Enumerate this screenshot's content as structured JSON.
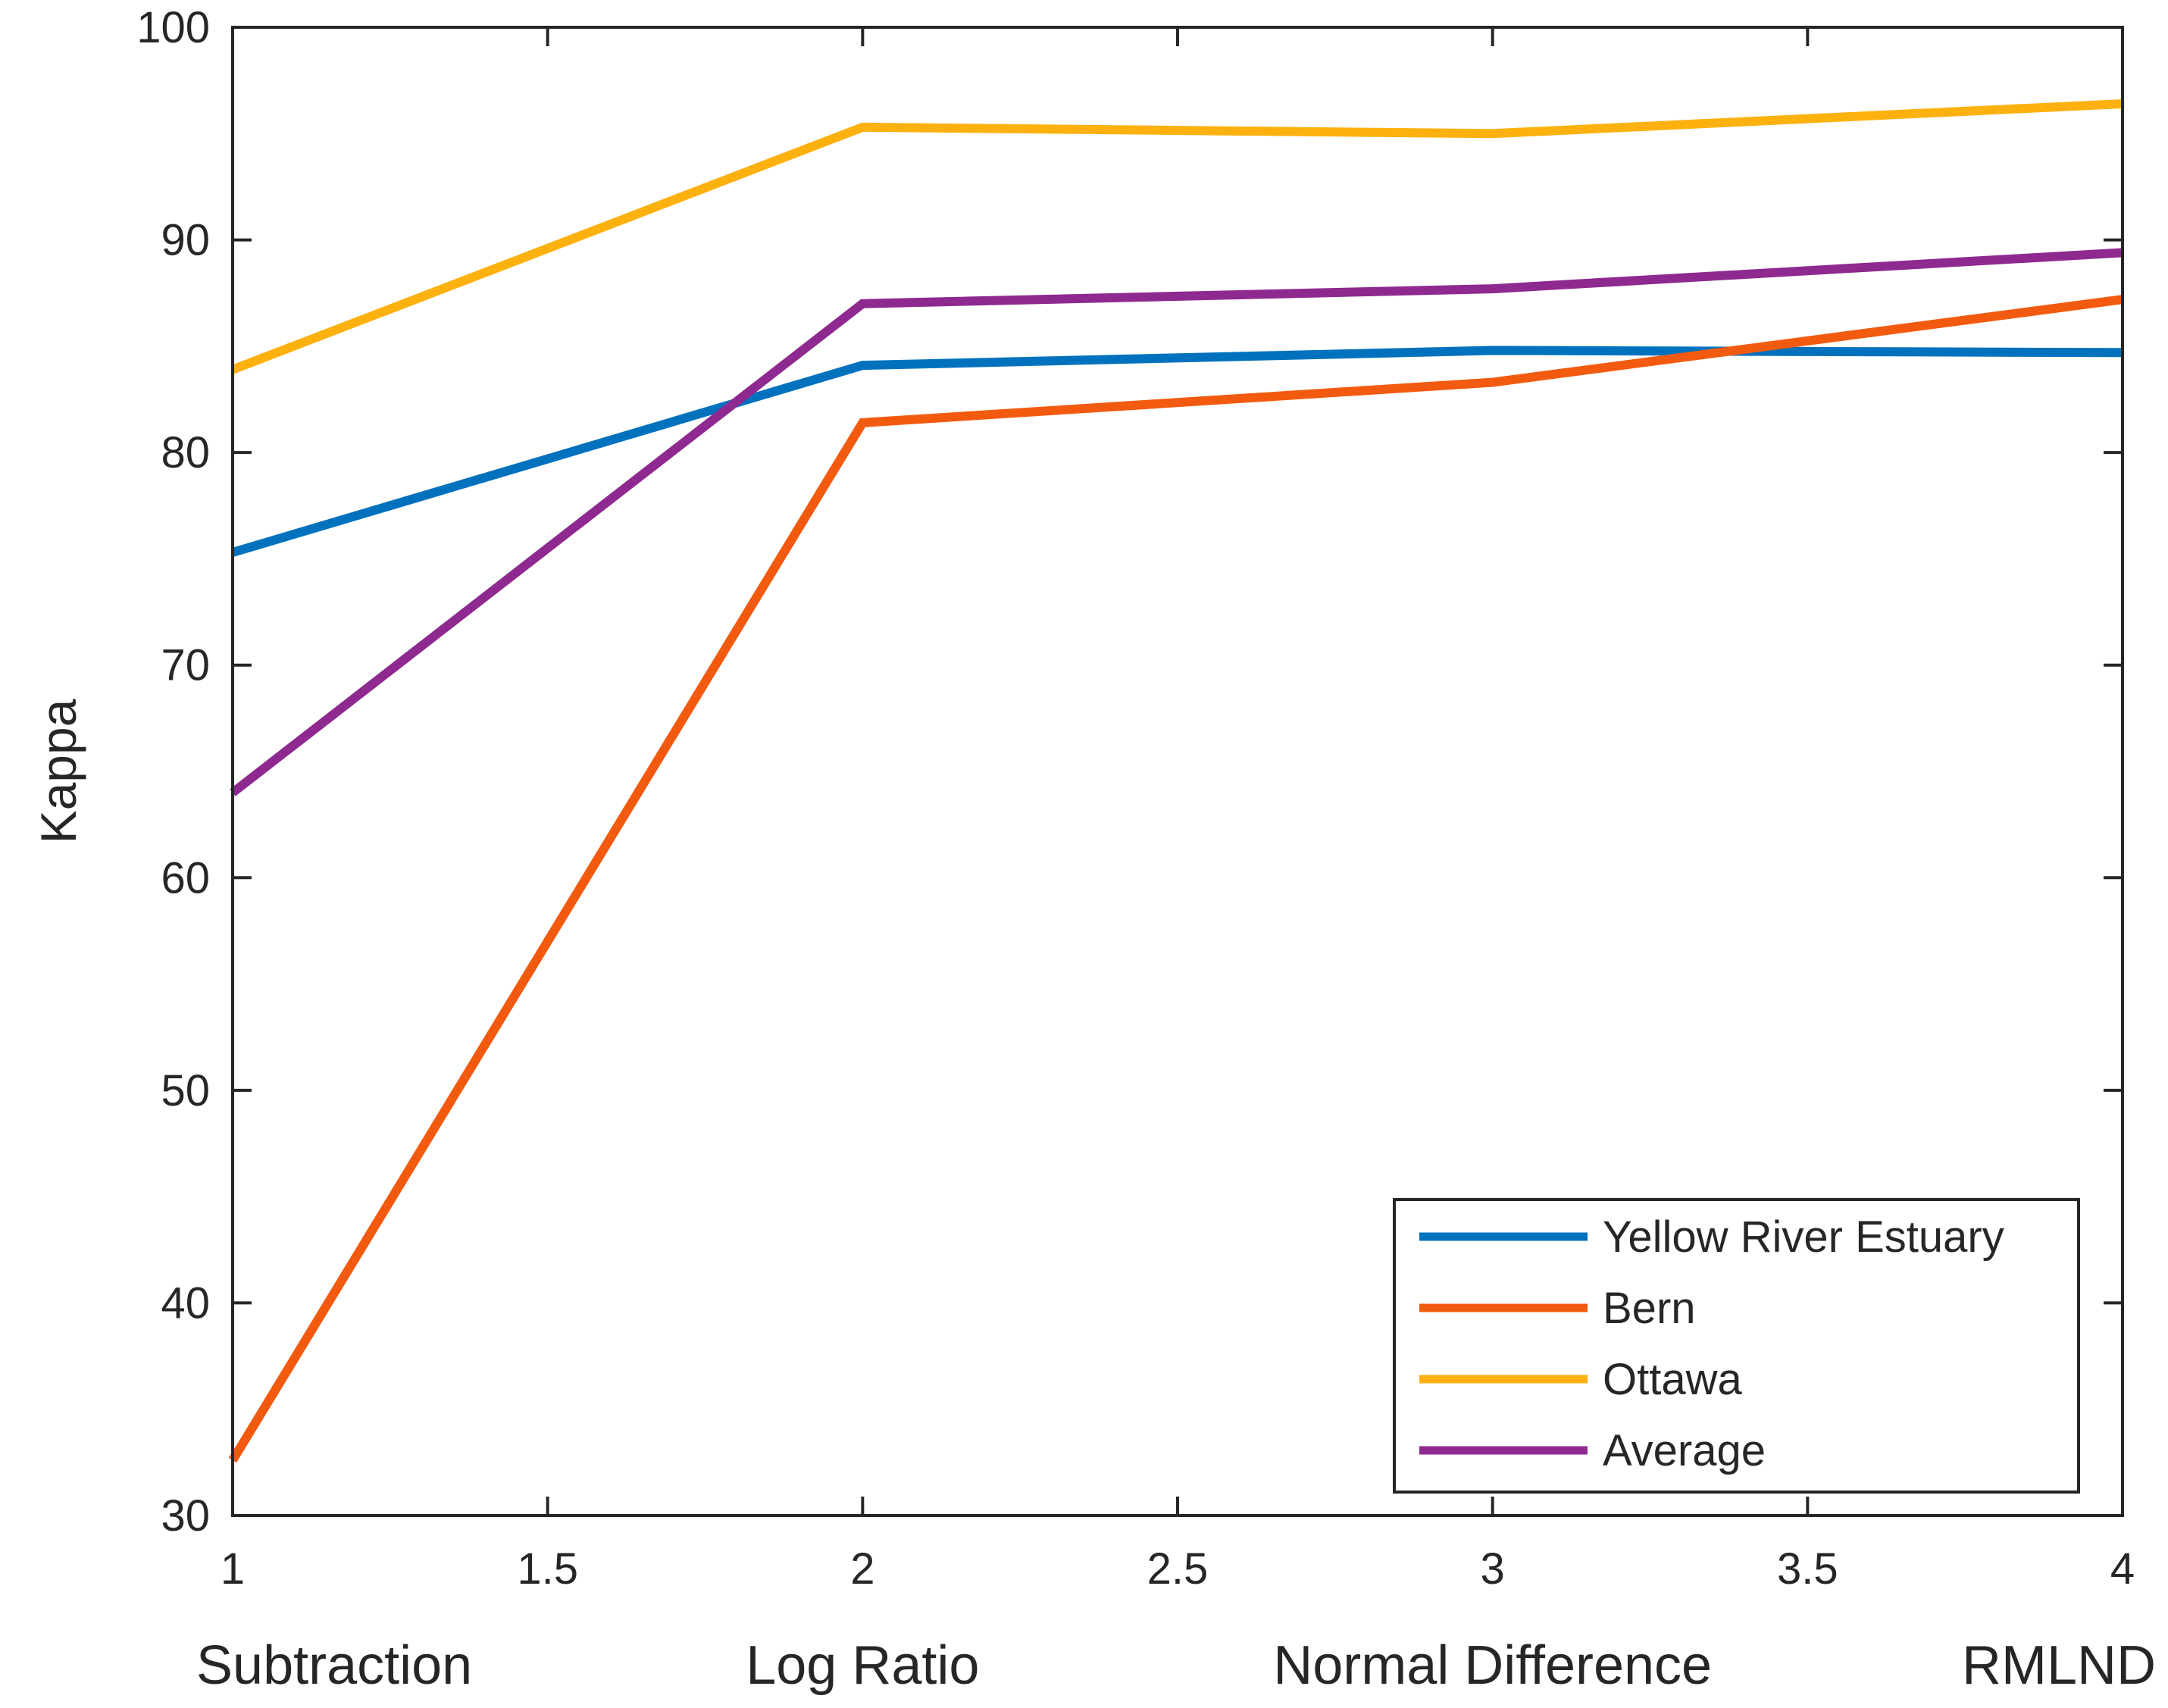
{
  "chart_data": {
    "type": "line",
    "title": "",
    "xlabel": "",
    "ylabel": "Kappa",
    "xlim": [
      1,
      4
    ],
    "ylim": [
      30,
      100
    ],
    "x": [
      1,
      2,
      3,
      4
    ],
    "xticks": [
      "1",
      "1.5",
      "2",
      "2.5",
      "3",
      "3.5",
      "4"
    ],
    "yticks": [
      "30",
      "40",
      "50",
      "60",
      "70",
      "80",
      "90",
      "100"
    ],
    "method_labels": [
      "Subtraction",
      "Log Ratio",
      "Normal Difference",
      "RMLND"
    ],
    "legend_position": "bottom-right",
    "series": [
      {
        "name": "Yellow River Estuary",
        "color": "#0072BD",
        "values": [
          75.3,
          84.1,
          84.8,
          84.7
        ]
      },
      {
        "name": "Bern",
        "color": "#F25B0F",
        "values": [
          32.6,
          81.4,
          83.3,
          87.2
        ]
      },
      {
        "name": "Ottawa",
        "color": "#FDB10F",
        "values": [
          83.9,
          95.3,
          95.0,
          96.4
        ]
      },
      {
        "name": "Average",
        "color": "#8E2A8F",
        "values": [
          64.0,
          87.0,
          87.7,
          89.4
        ]
      }
    ]
  }
}
